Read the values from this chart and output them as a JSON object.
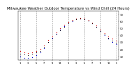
{
  "title": "Milwaukee Weather Outdoor Temperature vs Wind Chill (24 Hours)",
  "title_fontsize": 3.8,
  "background_color": "#ffffff",
  "grid_color": "#888888",
  "y_ticks": [
    10,
    20,
    30,
    40,
    50,
    60,
    70
  ],
  "ylim": [
    5,
    75
  ],
  "xlim": [
    0.5,
    25.5
  ],
  "temp_data": {
    "x": [
      1,
      2,
      3,
      4,
      5,
      6,
      7,
      8,
      9,
      10,
      11,
      12,
      13,
      14,
      15,
      16,
      17,
      18,
      19,
      20,
      21,
      22,
      23,
      24,
      25
    ],
    "y": [
      18,
      16,
      15,
      16,
      18,
      21,
      26,
      33,
      38,
      44,
      50,
      55,
      59,
      62,
      64,
      65,
      64,
      62,
      58,
      54,
      48,
      43,
      38,
      35,
      32
    ],
    "color": "#dd0000"
  },
  "windchill_data": {
    "x": [
      1,
      2,
      3,
      4,
      5,
      6,
      7,
      8,
      9,
      10,
      11,
      12,
      13,
      14,
      15,
      16,
      17,
      18,
      19,
      20,
      21,
      22,
      23,
      24,
      25
    ],
    "y": [
      10,
      8,
      8,
      9,
      12,
      16,
      22,
      30,
      36,
      42,
      48,
      53,
      57,
      60,
      63,
      64,
      63,
      61,
      57,
      52,
      46,
      40,
      35,
      30,
      27
    ],
    "color": "#0000cc"
  },
  "actual_data": {
    "x": [
      1,
      2,
      3,
      4,
      5,
      6,
      7,
      8,
      9,
      10,
      11,
      12,
      13,
      14,
      15,
      16,
      17,
      18,
      19,
      20,
      21,
      22,
      23,
      24,
      25
    ],
    "y": [
      14,
      13,
      12,
      14,
      16,
      18,
      24,
      30,
      35,
      41,
      47,
      52,
      57,
      61,
      63,
      64,
      63,
      61,
      57,
      52,
      46,
      41,
      36,
      32,
      28
    ],
    "color": "#000000"
  },
  "vgrid_positions": [
    1,
    5,
    9,
    13,
    17,
    21,
    25
  ],
  "x_tick_positions": [
    1,
    3,
    5,
    7,
    9,
    11,
    13,
    15,
    17,
    19,
    21,
    23,
    25
  ],
  "x_tick_labels": [
    "1",
    "3",
    "5",
    "7",
    "9",
    "11",
    "1",
    "3",
    "5",
    "7",
    "9",
    "11",
    "1"
  ]
}
